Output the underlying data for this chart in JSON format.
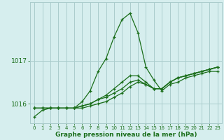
{
  "xlabel": "Graphe pression niveau de la mer (hPa)",
  "background_color": "#d6eeee",
  "grid_color": "#aacccc",
  "line_color": "#1a6e1a",
  "hours": [
    0,
    1,
    2,
    3,
    4,
    5,
    6,
    7,
    8,
    9,
    10,
    11,
    12,
    13,
    14,
    15,
    16,
    17,
    18,
    19,
    20,
    21,
    22,
    23
  ],
  "series": [
    [
      1015.7,
      1015.85,
      1015.9,
      1015.9,
      1015.9,
      1015.9,
      1016.05,
      1016.3,
      1016.75,
      1017.05,
      1017.55,
      1017.95,
      1018.1,
      1017.65,
      1016.85,
      1016.55,
      1016.3,
      1016.45,
      1016.5,
      1016.6,
      1016.65,
      1016.7,
      1016.75,
      1016.75
    ],
    [
      1015.9,
      1015.9,
      1015.9,
      1015.9,
      1015.9,
      1015.9,
      1015.95,
      1016.0,
      1016.1,
      1016.2,
      1016.35,
      1016.5,
      1016.65,
      1016.65,
      1016.5,
      1016.35,
      1016.35,
      1016.5,
      1016.6,
      1016.65,
      1016.7,
      1016.75,
      1016.8,
      1016.85
    ],
    [
      1015.9,
      1015.9,
      1015.9,
      1015.9,
      1015.9,
      1015.9,
      1015.95,
      1016.0,
      1016.1,
      1016.15,
      1016.25,
      1016.35,
      1016.5,
      1016.55,
      1016.45,
      1016.35,
      1016.35,
      1016.5,
      1016.6,
      1016.65,
      1016.7,
      1016.75,
      1016.8,
      1016.85
    ],
    [
      1015.9,
      1015.9,
      1015.9,
      1015.9,
      1015.9,
      1015.9,
      1015.9,
      1015.95,
      1016.0,
      1016.05,
      1016.15,
      1016.25,
      1016.4,
      1016.5,
      1016.45,
      1016.35,
      1016.35,
      1016.5,
      1016.6,
      1016.65,
      1016.7,
      1016.75,
      1016.8,
      1016.85
    ]
  ],
  "ylim": [
    1015.55,
    1018.35
  ],
  "yticks": [
    1016,
    1017
  ],
  "xlim": [
    -0.5,
    23.5
  ],
  "xtick_labels": [
    "0",
    "1",
    "2",
    "3",
    "4",
    "5",
    "6",
    "7",
    "8",
    "9",
    "10",
    "11",
    "12",
    "13",
    "14",
    "15",
    "16",
    "17",
    "18",
    "19",
    "20",
    "21",
    "22",
    "23"
  ],
  "xlabel_fontsize": 6.5,
  "ytick_fontsize": 6.5,
  "xtick_fontsize": 5.0
}
